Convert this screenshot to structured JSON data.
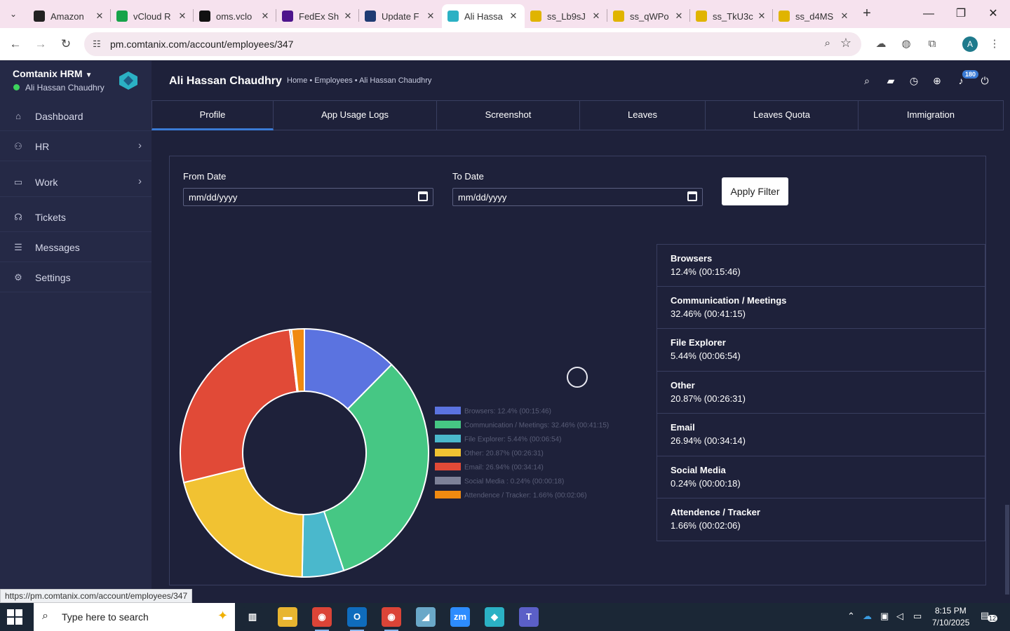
{
  "browser": {
    "tabs": [
      {
        "title": "Amazon",
        "icon": "amazon-icon",
        "color": "#222222"
      },
      {
        "title": "vCloud R",
        "icon": "vcloud-icon",
        "color": "#17a34a"
      },
      {
        "title": "oms.vclo",
        "icon": "oms-icon",
        "color": "#111111"
      },
      {
        "title": "FedEx Sh",
        "icon": "fedex-icon",
        "color": "#4d148c"
      },
      {
        "title": "Update F",
        "icon": "update-icon",
        "color": "#1f3b73"
      },
      {
        "title": "Ali Hassa",
        "icon": "comtanix-icon",
        "color": "#2bb1c4"
      },
      {
        "title": "ss_Lb9sJ",
        "icon": "w-icon",
        "color": "#e0b400"
      },
      {
        "title": "ss_qWPo",
        "icon": "w-icon",
        "color": "#e0b400"
      },
      {
        "title": "ss_TkU3c",
        "icon": "w-icon",
        "color": "#e0b400"
      },
      {
        "title": "ss_d4MS",
        "icon": "w-icon",
        "color": "#e0b400"
      }
    ],
    "active_tab": 5,
    "url": "pm.comtanix.com/account/employees/347",
    "status_url": "https://pm.comtanix.com/account/employees/347",
    "profile_initial": "A"
  },
  "sidebar": {
    "brand": "Comtanix HRM",
    "user": "Ali Hassan Chaudhry",
    "items": [
      {
        "label": "Dashboard",
        "icon": "home-icon"
      },
      {
        "label": "HR",
        "icon": "users-icon"
      },
      {
        "label": "Work",
        "icon": "briefcase-icon"
      },
      {
        "label": "Tickets",
        "icon": "headset-icon"
      },
      {
        "label": "Messages",
        "icon": "chat-icon"
      },
      {
        "label": "Settings",
        "icon": "gear-icon"
      }
    ]
  },
  "header": {
    "title": "Ali Hassan Chaudhry",
    "breadcrumb": "Home • Employees • Ali Hassan Chaudhry",
    "notification_count": "180"
  },
  "tabs": [
    "Profile",
    "App Usage Logs",
    "Screenshot",
    "Leaves",
    "Leaves Quota",
    "Immigration"
  ],
  "active_tab": 0,
  "filter": {
    "from_label": "From Date",
    "to_label": "To Date",
    "from_placeholder": "mm/dd/yyyy",
    "to_placeholder": "mm/dd/yyyy",
    "apply_label": "Apply Filter"
  },
  "chart_data": {
    "type": "pie",
    "donut": true,
    "categories": [
      "Browsers",
      "Communication / Meetings",
      "File Explorer",
      "Other",
      "Email",
      "Social Media",
      "Attendence / Tracker"
    ],
    "values": [
      12.4,
      32.46,
      5.44,
      20.87,
      26.94,
      0.24,
      1.66
    ],
    "durations": [
      "00:15:46",
      "00:41:15",
      "00:06:54",
      "00:26:31",
      "00:34:14",
      "00:00:18",
      "00:02:06"
    ],
    "legend_labels": [
      "Browsers: 12.4% (00:15:46)",
      "Communication / Meetings: 32.46% (00:41:15)",
      "File Explorer: 5.44% (00:06:54)",
      "Other: 20.87% (00:26:31)",
      "Email: 26.94% (00:34:14)",
      "Social Media : 0.24% (00:00:18)",
      "Attendence / Tracker: 1.66% (00:02:06)"
    ],
    "colors": [
      "#5b73e0",
      "#46c784",
      "#4ab8cc",
      "#f1c232",
      "#e14a37",
      "#7d8198",
      "#f08a10"
    ],
    "legend_position": "right"
  },
  "stats": [
    {
      "name": "Browsers",
      "value": "12.4% (00:15:46)"
    },
    {
      "name": "Communication / Meetings",
      "value": "32.46% (00:41:15)"
    },
    {
      "name": "File Explorer",
      "value": "5.44% (00:06:54)"
    },
    {
      "name": "Other",
      "value": "20.87% (00:26:31)"
    },
    {
      "name": "Email",
      "value": "26.94% (00:34:14)"
    },
    {
      "name": "Social Media",
      "value": "0.24% (00:00:18)"
    },
    {
      "name": "Attendence / Tracker",
      "value": "1.66% (00:02:06)"
    }
  ],
  "taskbar": {
    "search_placeholder": "Type here to search",
    "time": "8:15 PM",
    "date": "7/10/2025",
    "notification_count": "12",
    "apps": [
      {
        "name": "task-view-icon",
        "glyph": "▥",
        "color": "#1b2736"
      },
      {
        "name": "file-explorer-icon",
        "glyph": "▬",
        "color": "#e8b530"
      },
      {
        "name": "chrome-icon",
        "glyph": "◉",
        "color": "#db4437"
      },
      {
        "name": "outlook-icon",
        "glyph": "O",
        "color": "#0f6cbd"
      },
      {
        "name": "chrome-profile-icon",
        "glyph": "◉",
        "color": "#db4437"
      },
      {
        "name": "notes-app-icon",
        "glyph": "◢",
        "color": "#6aa8c8"
      },
      {
        "name": "zoom-icon",
        "glyph": "zm",
        "color": "#2d8cff"
      },
      {
        "name": "comtanix-app-icon",
        "glyph": "◆",
        "color": "#2bb1c4"
      },
      {
        "name": "teams-icon",
        "glyph": "T",
        "color": "#5b5fc7"
      }
    ]
  }
}
